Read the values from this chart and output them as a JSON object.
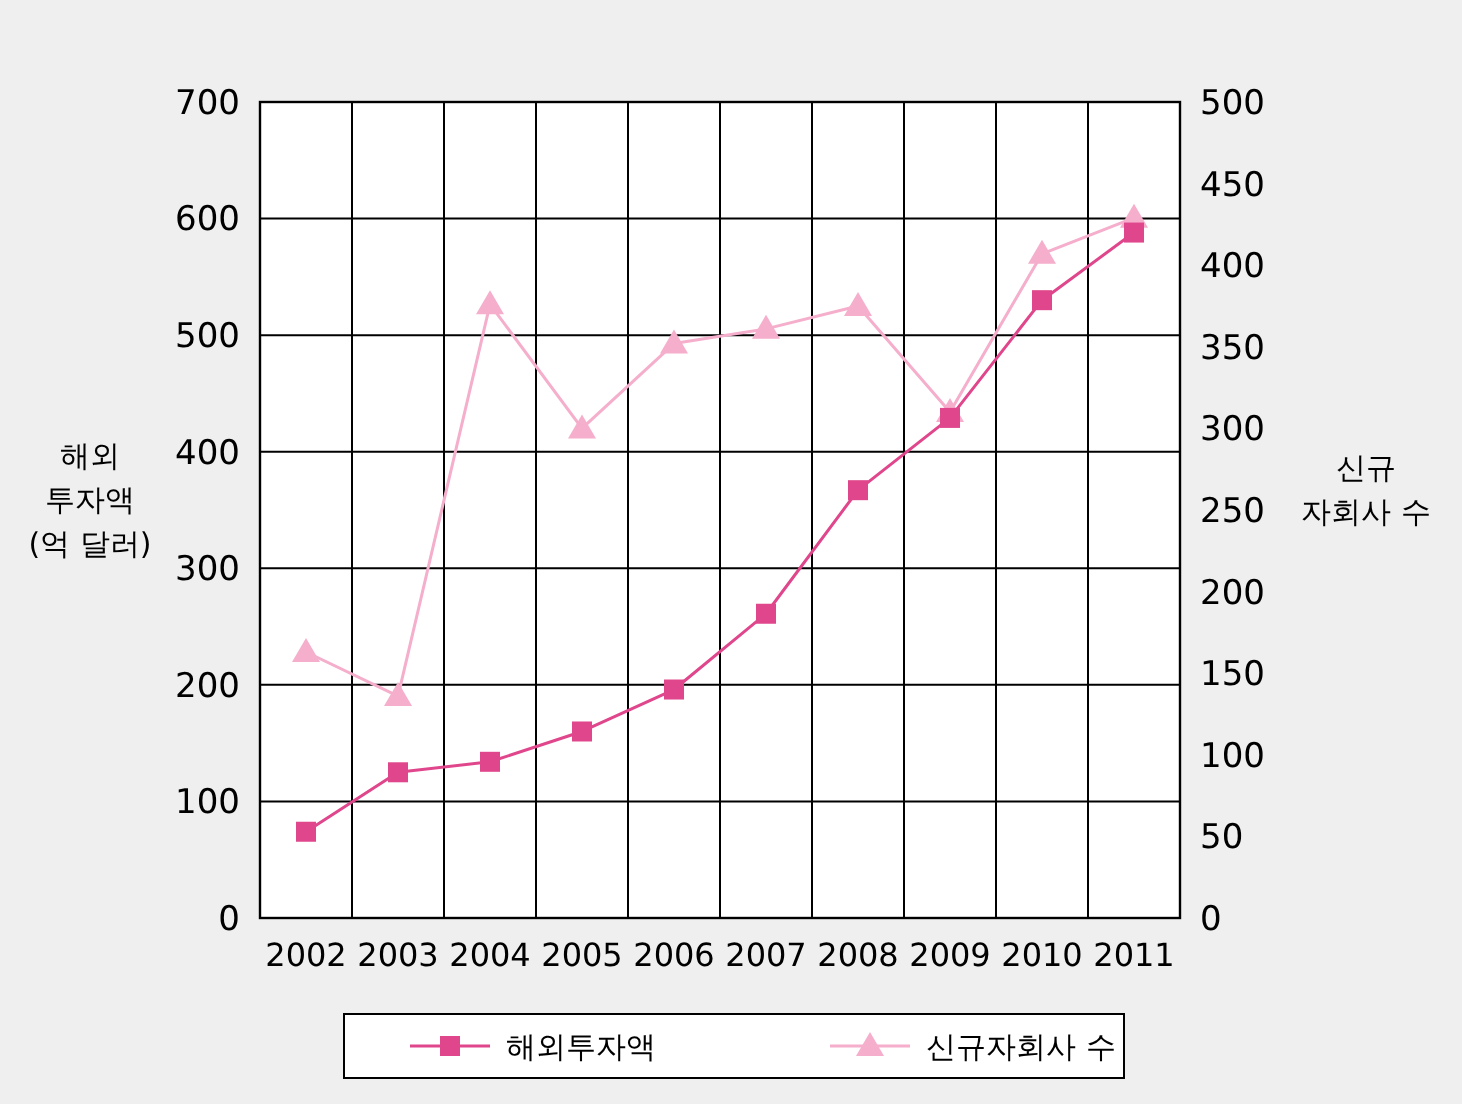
{
  "chart_data": {
    "type": "line",
    "categories": [
      "2002",
      "2003",
      "2004",
      "2005",
      "2006",
      "2007",
      "2008",
      "2009",
      "2010",
      "2011"
    ],
    "series": [
      {
        "name": "해외투자액",
        "color": "#e0468c",
        "values": [
          74,
          125,
          134,
          160,
          196,
          261,
          367,
          429,
          530,
          588
        ],
        "marker": "square"
      },
      {
        "name": "신규자회사 수",
        "color": "#f5aecb",
        "values": [
          163,
          136,
          376,
          300,
          352,
          361,
          375,
          310,
          407,
          429
        ],
        "axis": "y2",
        "marker": "triangle"
      }
    ],
    "ylabel": "해외\n투자액\n(억 달러)",
    "y2label": "신규\n자회사 수",
    "ylim": [
      0,
      700
    ],
    "yticks": [
      0,
      100,
      200,
      300,
      400,
      500,
      600,
      700
    ],
    "y2lim": [
      0,
      500
    ],
    "y2ticks": [
      0,
      50,
      100,
      150,
      200,
      250,
      300,
      350,
      400,
      450,
      500
    ],
    "grid": true,
    "legend": "bottom"
  }
}
